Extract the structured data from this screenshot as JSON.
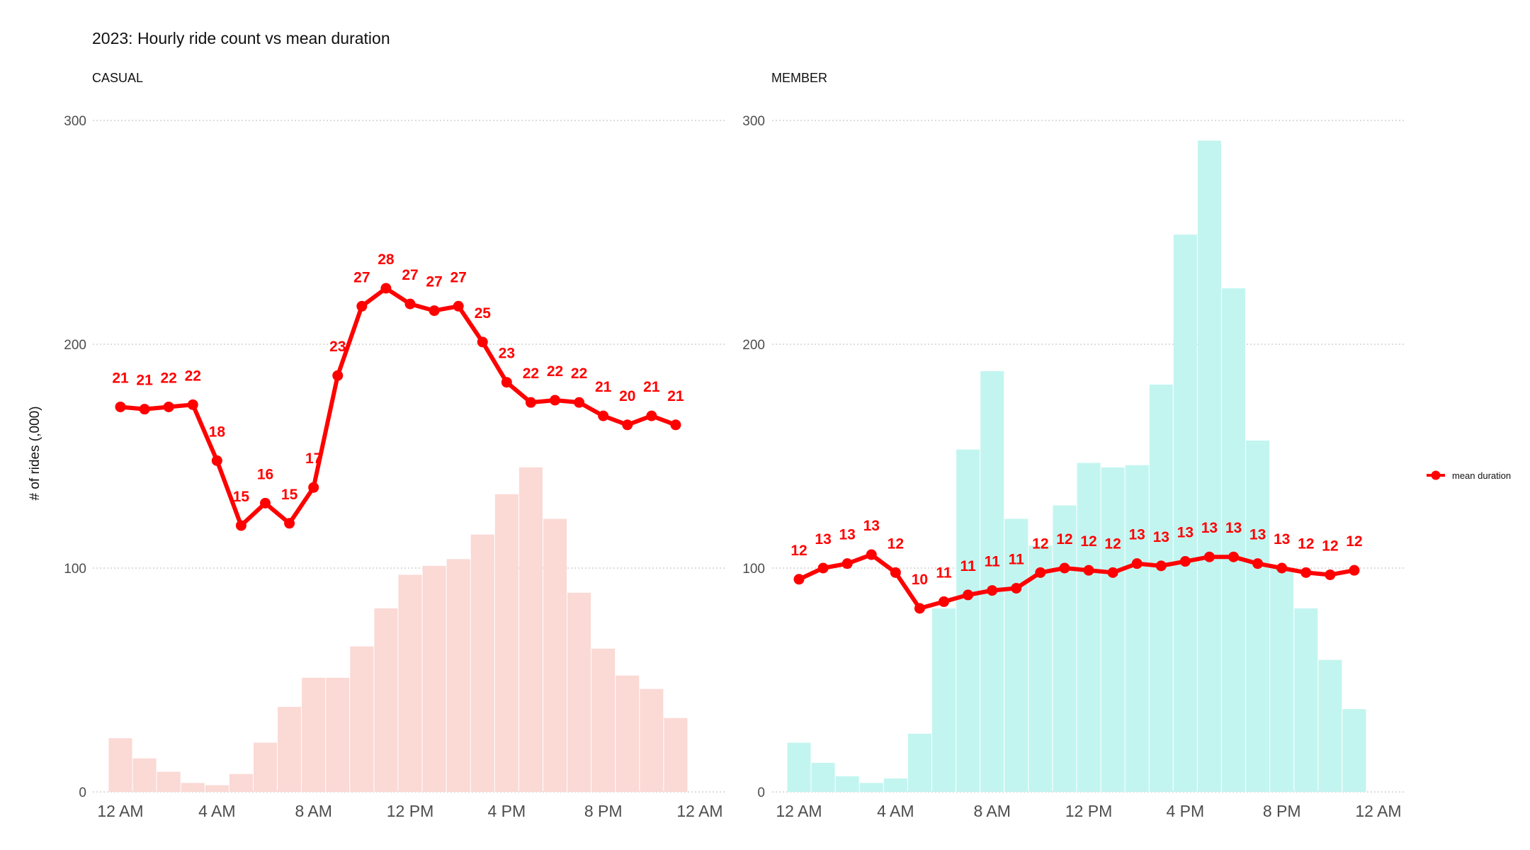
{
  "title": "2023: Hourly ride count vs mean duration",
  "ylabel": "# of rides (,000)",
  "legend": {
    "label": "mean duration",
    "color": "#ff0000"
  },
  "chart_data": [
    {
      "type": "bar",
      "facet": "CASUAL",
      "bar_color": "#fbd9d5",
      "line_color": "#ff0000",
      "x": [
        0,
        1,
        2,
        3,
        4,
        5,
        6,
        7,
        8,
        9,
        10,
        11,
        12,
        13,
        14,
        15,
        16,
        17,
        18,
        19,
        20,
        21,
        22,
        23
      ],
      "xticks": {
        "values": [
          0,
          4,
          8,
          12,
          16,
          20,
          24
        ],
        "labels": [
          "12 AM",
          "4 AM",
          "8 AM",
          "12 PM",
          "4 PM",
          "8 PM",
          "12 AM"
        ]
      },
      "ylim": [
        0,
        300
      ],
      "yticks": [
        "0",
        "100",
        "200",
        "300"
      ],
      "series": [
        {
          "name": "ride count",
          "type": "bar",
          "values": [
            24,
            15,
            9,
            4,
            3,
            8,
            22,
            38,
            51,
            51,
            65,
            82,
            97,
            101,
            104,
            115,
            133,
            145,
            122,
            89,
            64,
            52,
            46,
            33
          ]
        },
        {
          "name": "mean duration",
          "type": "line",
          "y_position": [
            172,
            171,
            172,
            173,
            148,
            119,
            129,
            120,
            136,
            186,
            217,
            225,
            218,
            215,
            217,
            201,
            183,
            174,
            175,
            174,
            168,
            164,
            168,
            164
          ],
          "labels": [
            "21",
            "21",
            "22",
            "22",
            "18",
            "15",
            "16",
            "15",
            "17",
            "23",
            "27",
            "28",
            "27",
            "27",
            "27",
            "25",
            "23",
            "22",
            "22",
            "22",
            "21",
            "20",
            "21",
            "21"
          ]
        }
      ]
    },
    {
      "type": "bar",
      "facet": "MEMBER",
      "bar_color": "#c3f5f0",
      "line_color": "#ff0000",
      "x": [
        0,
        1,
        2,
        3,
        4,
        5,
        6,
        7,
        8,
        9,
        10,
        11,
        12,
        13,
        14,
        15,
        16,
        17,
        18,
        19,
        20,
        21,
        22,
        23
      ],
      "xticks": {
        "values": [
          0,
          4,
          8,
          12,
          16,
          20,
          24
        ],
        "labels": [
          "12 AM",
          "4 AM",
          "8 AM",
          "12 PM",
          "4 PM",
          "8 PM",
          "12 AM"
        ]
      },
      "ylim": [
        0,
        300
      ],
      "yticks": [
        "0",
        "100",
        "200",
        "300"
      ],
      "series": [
        {
          "name": "ride count",
          "type": "bar",
          "values": [
            22,
            13,
            7,
            4,
            6,
            26,
            82,
            153,
            188,
            122,
            110,
            128,
            147,
            145,
            146,
            182,
            249,
            291,
            225,
            157,
            100,
            82,
            59,
            37
          ]
        },
        {
          "name": "mean duration",
          "type": "line",
          "y_position": [
            95,
            100,
            102,
            106,
            98,
            82,
            85,
            88,
            90,
            91,
            98,
            100,
            99,
            98,
            102,
            101,
            103,
            105,
            105,
            102,
            100,
            98,
            97,
            99
          ],
          "labels": [
            "12",
            "13",
            "13",
            "13",
            "12",
            "10",
            "11",
            "11",
            "11",
            "11",
            "12",
            "12",
            "12",
            "12",
            "13",
            "13",
            "13",
            "13",
            "13",
            "13",
            "13",
            "12",
            "12",
            "12"
          ]
        }
      ]
    }
  ]
}
